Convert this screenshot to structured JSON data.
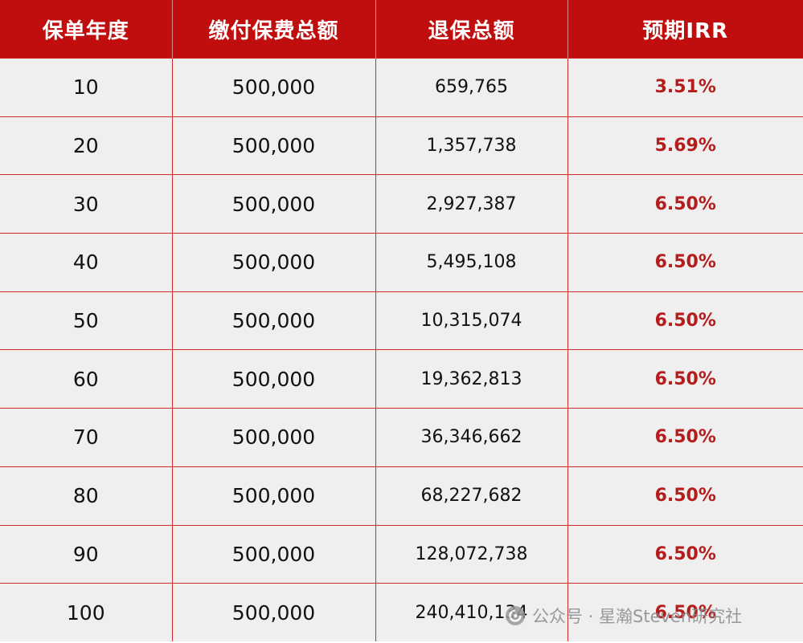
{
  "table": {
    "headers": [
      "保单年度",
      "缴付保费总额",
      "退保总额",
      "预期IRR"
    ],
    "rows": [
      {
        "year": "10",
        "premium": "500,000",
        "surrender": "659,765",
        "irr": "3.51%"
      },
      {
        "year": "20",
        "premium": "500,000",
        "surrender": "1,357,738",
        "irr": "5.69%"
      },
      {
        "year": "30",
        "premium": "500,000",
        "surrender": "2,927,387",
        "irr": "6.50%"
      },
      {
        "year": "40",
        "premium": "500,000",
        "surrender": "5,495,108",
        "irr": "6.50%"
      },
      {
        "year": "50",
        "premium": "500,000",
        "surrender": "10,315,074",
        "irr": "6.50%"
      },
      {
        "year": "60",
        "premium": "500,000",
        "surrender": "19,362,813",
        "irr": "6.50%"
      },
      {
        "year": "70",
        "premium": "500,000",
        "surrender": "36,346,662",
        "irr": "6.50%"
      },
      {
        "year": "80",
        "premium": "500,000",
        "surrender": "68,227,682",
        "irr": "6.50%"
      },
      {
        "year": "90",
        "premium": "500,000",
        "surrender": "128,072,738",
        "irr": "6.50%"
      },
      {
        "year": "100",
        "premium": "500,000",
        "surrender": "240,410,134",
        "irr": "6.50%"
      }
    ]
  },
  "watermark": {
    "text": "公众号 · 星瀚Steven研究社",
    "icon": "wechat-official-account-icon"
  },
  "colors": {
    "header_bg": "#c00d0d",
    "row_bg": "#efefef",
    "grid_line": "#d02a2a",
    "irr_text": "#b51c1c"
  }
}
